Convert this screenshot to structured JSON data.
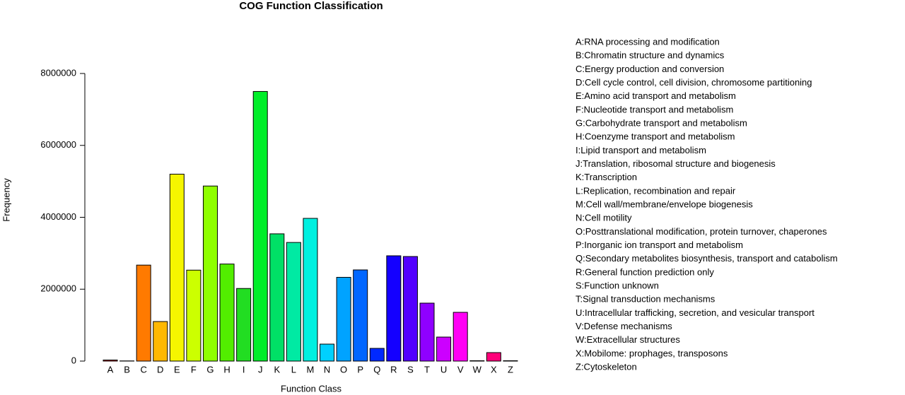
{
  "chart_data": {
    "type": "bar",
    "title": "COG Function Classification",
    "x_label": "Function Class",
    "y_label": "Frequency",
    "categories": [
      "A",
      "B",
      "C",
      "D",
      "E",
      "F",
      "G",
      "H",
      "I",
      "J",
      "K",
      "L",
      "M",
      "N",
      "O",
      "P",
      "Q",
      "R",
      "S",
      "T",
      "U",
      "V",
      "W",
      "X",
      "Z"
    ],
    "values": [
      30000,
      5000,
      2670000,
      1100000,
      5200000,
      2530000,
      4870000,
      2700000,
      2020000,
      7500000,
      3540000,
      3300000,
      3970000,
      472000,
      2330000,
      2536000,
      354000,
      2929000,
      2909000,
      1612000,
      668000,
      1356000,
      10000,
      236000,
      10000
    ],
    "colors": [
      "#e00000",
      "#ee3a00",
      "#ff7a00",
      "#ffb800",
      "#f5f500",
      "#ccff00",
      "#8fff00",
      "#52ee00",
      "#22dd22",
      "#00ee29",
      "#00e066",
      "#00eaa3",
      "#00f0e0",
      "#00d0ff",
      "#00a3ff",
      "#0066ff",
      "#0029ff",
      "#1400ff",
      "#5200ff",
      "#8f00ff",
      "#cc00ff",
      "#ff00f5",
      "#ff00b8",
      "#ff007a",
      "#ff003d"
    ],
    "ylim": [
      0,
      8000000
    ],
    "yticks": [
      0,
      2000000,
      4000000,
      6000000,
      8000000
    ],
    "legend": [
      "A:RNA processing and modification",
      "B:Chromatin structure and dynamics",
      "C:Energy production and conversion",
      "D:Cell cycle control, cell division, chromosome partitioning",
      "E:Amino acid transport and metabolism",
      "F:Nucleotide transport and metabolism",
      "G:Carbohydrate transport and metabolism",
      "H:Coenzyme transport and metabolism",
      "I:Lipid transport and metabolism",
      "J:Translation, ribosomal structure and biogenesis",
      "K:Transcription",
      "L:Replication, recombination and repair",
      "M:Cell wall/membrane/envelope biogenesis",
      "N:Cell motility",
      "O:Posttranslational modification, protein turnover, chaperones",
      "P:Inorganic ion transport and metabolism",
      "Q:Secondary metabolites biosynthesis, transport and catabolism",
      "R:General function prediction only",
      "S:Function unknown",
      "T:Signal transduction mechanisms",
      "U:Intracellular trafficking, secretion, and vesicular transport",
      "V:Defense mechanisms",
      "W:Extracellular structures",
      "X:Mobilome: prophages, transposons",
      "Z:Cytoskeleton"
    ]
  }
}
